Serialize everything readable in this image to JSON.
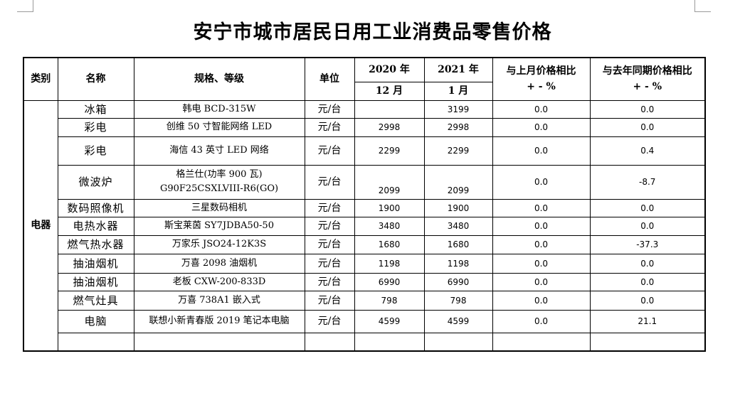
{
  "title": "安宁市城市居民日用工业消费品零售价格",
  "headers": {
    "category": "类别",
    "name": "名称",
    "spec": "规格、等级",
    "unit": "单位",
    "year_prev": "2020 年",
    "year_cur": "2021 年",
    "month_prev": "12 月",
    "month_cur": "1 月",
    "mom_line1": "与上月价格相比",
    "mom_line2": "+ - %",
    "yoy_line1": "与去年同期价格相比",
    "yoy_line2": "+ - %"
  },
  "category": "电器",
  "rows": [
    {
      "name": "冰箱",
      "spec": "韩电 BCD-315W",
      "unit": "元/台",
      "prev": "",
      "cur": "3199",
      "mom": "0.0",
      "yoy": "0.0"
    },
    {
      "name": "彩电",
      "spec": "创维 50 寸智能网络 LED",
      "unit": "元/台",
      "prev": "2998",
      "cur": "2998",
      "mom": "0.0",
      "yoy": "0.0"
    },
    {
      "name": "彩电",
      "spec": "海信 43 英寸 LED 网络",
      "unit": "元/台",
      "prev": "2299",
      "cur": "2299",
      "mom": "0.0",
      "yoy": "0.4"
    },
    {
      "name": "微波炉",
      "spec": "格兰仕(功率 900 瓦)",
      "spec2": "G90F25CSXLVIII-R6(GO)",
      "unit": "元/台",
      "prev": "2099",
      "cur": "2099",
      "mom": "0.0",
      "yoy": "-8.7"
    },
    {
      "name": "数码照像机",
      "spec": "三星数码相机",
      "unit": "元/台",
      "prev": "1900",
      "cur": "1900",
      "mom": "0.0",
      "yoy": "0.0"
    },
    {
      "name": "电热水器",
      "spec": "斯宝莱茵 SY7JDBA50-50",
      "unit": "元/台",
      "prev": "3480",
      "cur": "3480",
      "mom": "0.0",
      "yoy": "0.0"
    },
    {
      "name": "燃气热水器",
      "spec": "万家乐 JSO24-12K3S",
      "unit": "元/台",
      "prev": "1680",
      "cur": "1680",
      "mom": "0.0",
      "yoy": "-37.3"
    },
    {
      "name": "抽油烟机",
      "spec": "万喜 2098 油烟机",
      "unit": "元/台",
      "prev": "1198",
      "cur": "1198",
      "mom": "0.0",
      "yoy": "0.0"
    },
    {
      "name": "抽油烟机",
      "spec": "老板 CXW-200-833D",
      "unit": "元/台",
      "prev": "6990",
      "cur": "6990",
      "mom": "0.0",
      "yoy": "0.0"
    },
    {
      "name": "燃气灶具",
      "spec": "万喜 738A1 嵌入式",
      "unit": "元/台",
      "prev": "798",
      "cur": "798",
      "mom": "0.0",
      "yoy": "0.0"
    },
    {
      "name": "电脑",
      "spec": "联想小新青春版 2019 笔记本电脑",
      "unit": "元/台",
      "prev": "4599",
      "cur": "4599",
      "mom": "0.0",
      "yoy": "21.1"
    }
  ]
}
